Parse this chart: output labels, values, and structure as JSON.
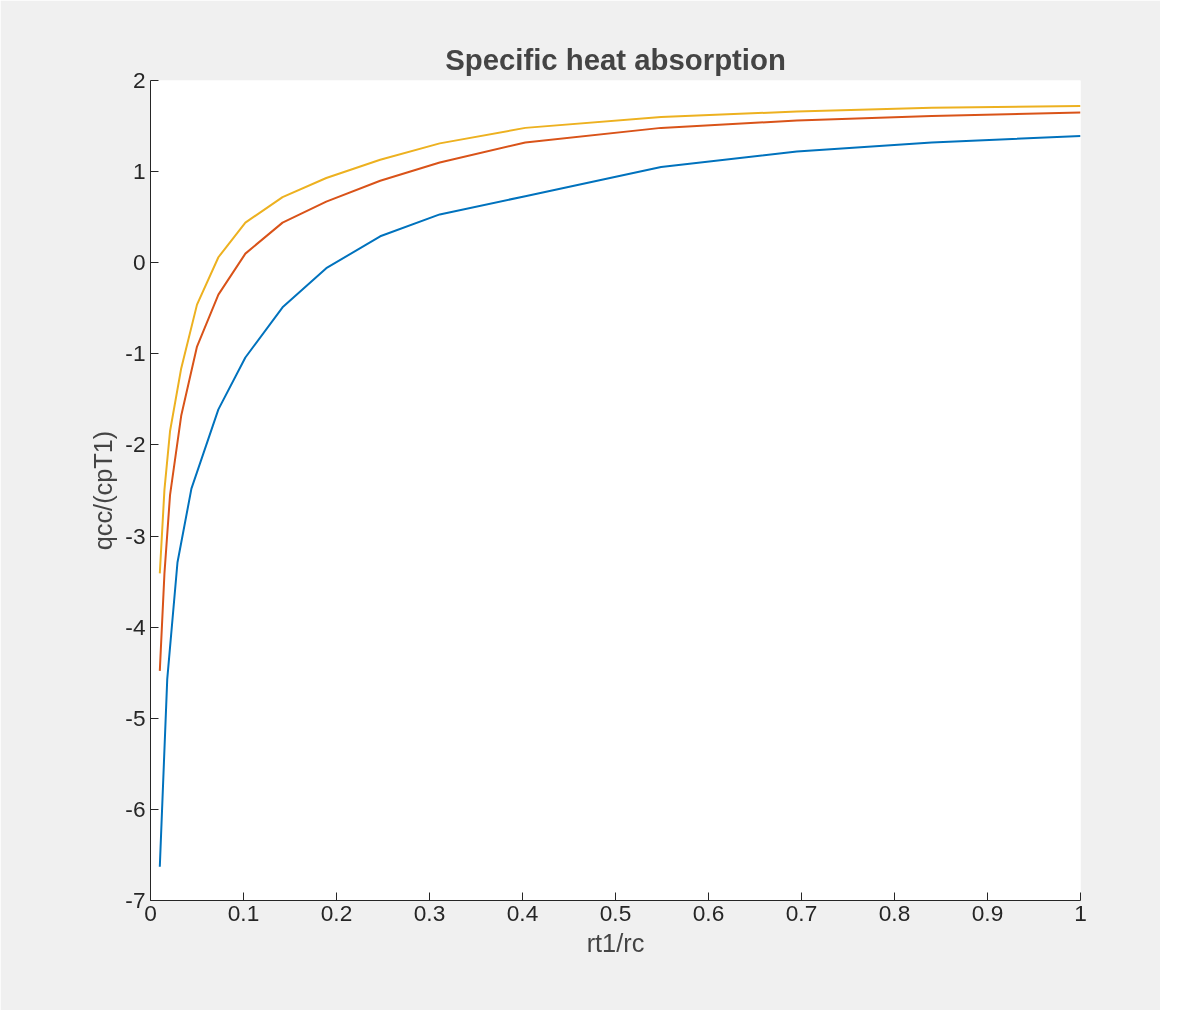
{
  "chart_data": {
    "type": "line",
    "title": "Specific heat absorption",
    "xlabel": "rt1/rc",
    "ylabel": "qcc/(cpT1)",
    "xlim": [
      0,
      1
    ],
    "ylim": [
      -7,
      2
    ],
    "xticks": [
      0,
      0.1,
      0.2,
      0.3,
      0.4,
      0.5,
      0.6,
      0.7,
      0.8,
      0.9,
      1
    ],
    "yticks": [
      -7,
      -6,
      -5,
      -4,
      -3,
      -2,
      -1,
      0,
      1,
      2
    ],
    "marker": "none",
    "line_style": "solid",
    "series": [
      {
        "color": "#0072bd",
        "x": [
          0.01,
          0.018,
          0.029,
          0.044,
          0.073,
          0.102,
          0.142,
          0.189,
          0.247,
          0.311,
          0.403,
          0.549,
          0.695,
          0.84,
          1
        ],
        "values": [
          -6.63,
          -4.57,
          -3.29,
          -2.48,
          -1.61,
          -1.04,
          -0.49,
          -0.06,
          0.29,
          0.53,
          0.73,
          1.05,
          1.22,
          1.32,
          1.39
        ]
      },
      {
        "color": "#d95319",
        "x": [
          0.01,
          0.015,
          0.021,
          0.033,
          0.05,
          0.073,
          0.102,
          0.142,
          0.189,
          0.247,
          0.311,
          0.403,
          0.549,
          0.695,
          0.84,
          1
        ],
        "values": [
          -4.48,
          -3.41,
          -2.55,
          -1.68,
          -0.92,
          -0.35,
          0.1,
          0.44,
          0.67,
          0.9,
          1.1,
          1.32,
          1.48,
          1.56,
          1.61,
          1.65
        ]
      },
      {
        "color": "#edb120",
        "x": [
          0.01,
          0.015,
          0.021,
          0.033,
          0.05,
          0.073,
          0.102,
          0.142,
          0.189,
          0.247,
          0.311,
          0.403,
          0.549,
          0.695,
          0.84,
          1
        ],
        "values": [
          -3.41,
          -2.49,
          -1.85,
          -1.16,
          -0.46,
          0.06,
          0.44,
          0.72,
          0.93,
          1.13,
          1.31,
          1.48,
          1.6,
          1.66,
          1.7,
          1.72
        ]
      }
    ]
  }
}
